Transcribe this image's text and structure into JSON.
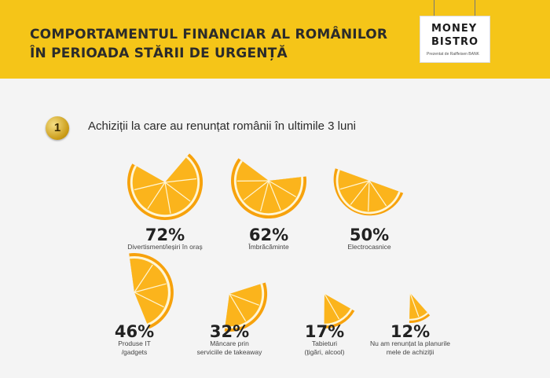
{
  "header": {
    "title_line1": "COMPORTAMENTUL FINANCIAR AL ROMÂNILOR",
    "title_line2": "ÎN PERIOADA STĂRII DE URGENȚĂ",
    "logo_word1": "MONEY",
    "logo_word2": "BISTRO",
    "logo_tagline": "Prezentat de Raiffeisen BANK"
  },
  "section": {
    "number": "1",
    "title": "Achiziții la care au renunțat românii în ultimile 3 luni"
  },
  "colors": {
    "header_bg": "#f5c518",
    "orange_peel": "#f7a20c",
    "orange_flesh": "#fbb41c",
    "pith": "#fff6d6"
  },
  "chart_data": {
    "type": "pictogram",
    "categories": [
      "Divertisment/ieșiri în oraș",
      "Îmbrăcăminte",
      "Electrocasnice",
      "Produse IT\n/gadgets",
      "Mâncare prin\nserviciile de takeaway",
      "Tabieturi\n(țigări, alcool)",
      "Nu am renunțat la planurile\nmele de achiziții"
    ],
    "values": [
      72,
      62,
      50,
      46,
      32,
      17,
      12
    ],
    "labels": [
      "72%",
      "62%",
      "50%",
      "46%",
      "32%",
      "17%",
      "12%"
    ],
    "unit": "%"
  }
}
